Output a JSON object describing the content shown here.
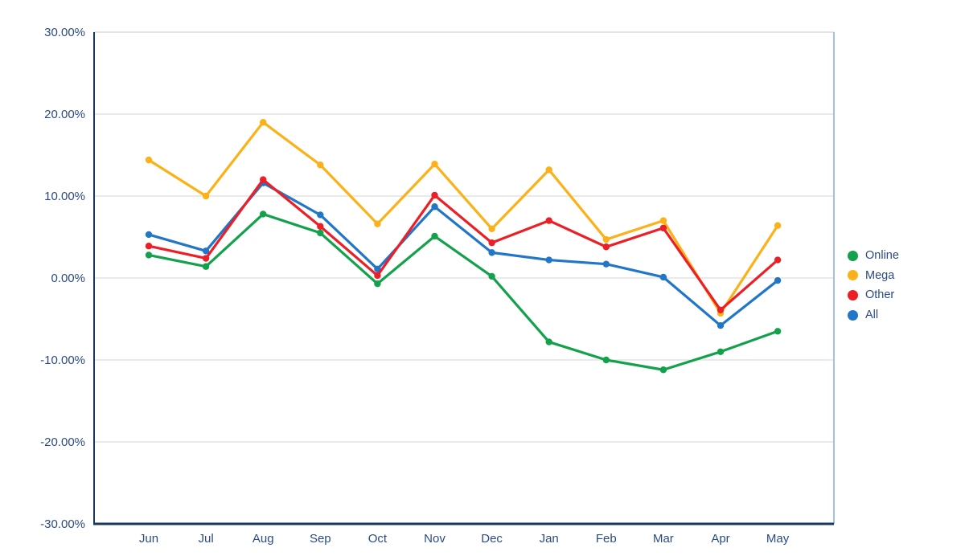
{
  "chart_data": {
    "type": "line",
    "title": "",
    "xlabel": "",
    "ylabel": "",
    "unit": "percent",
    "categories": [
      "Jun",
      "Jul",
      "Aug",
      "Sep",
      "Oct",
      "Nov",
      "Dec",
      "Jan",
      "Feb",
      "Mar",
      "Apr",
      "May"
    ],
    "series": [
      {
        "name": "Online",
        "color": "#13A14B",
        "values": [
          2.8,
          1.4,
          7.8,
          5.5,
          -0.7,
          5.1,
          0.2,
          -7.8,
          -10.0,
          -11.2,
          -9.0,
          -6.5
        ]
      },
      {
        "name": "Mega",
        "color": "#FBB117",
        "values": [
          14.4,
          10.0,
          19.0,
          13.8,
          6.6,
          13.9,
          6.0,
          13.2,
          4.7,
          7.0,
          -4.3,
          6.4
        ]
      },
      {
        "name": "Other",
        "color": "#EC1E26",
        "values": [
          3.9,
          2.4,
          12.0,
          6.3,
          0.3,
          10.1,
          4.3,
          7.0,
          3.8,
          6.1,
          -3.9,
          2.2
        ]
      },
      {
        "name": "All",
        "color": "#2176C7",
        "values": [
          5.3,
          3.3,
          11.6,
          7.7,
          1.1,
          8.7,
          3.1,
          2.2,
          1.7,
          0.1,
          -5.8,
          -0.3
        ]
      }
    ],
    "ylim": [
      -30,
      30
    ],
    "yticks": [
      {
        "value": 30,
        "label": "30.00%"
      },
      {
        "value": 20,
        "label": "20.00%"
      },
      {
        "value": 10,
        "label": "10.00%"
      },
      {
        "value": 0,
        "label": "0.00%"
      },
      {
        "value": -10,
        "label": "-10.00%"
      },
      {
        "value": -20,
        "label": "-20.00%"
      },
      {
        "value": -30,
        "label": "-30.00%"
      }
    ],
    "grid": true,
    "legend_position": "right"
  },
  "legend": {
    "items": [
      {
        "label": "Online",
        "color": "#13A14B"
      },
      {
        "label": "Mega",
        "color": "#FBB117"
      },
      {
        "label": "Other",
        "color": "#EC1E26"
      },
      {
        "label": "All",
        "color": "#2176C7"
      }
    ]
  },
  "colors": {
    "axis_text": "#2B4A86",
    "grid": "#D6D6D6",
    "axis_line": "#17375E",
    "right_border": "#A3C2DE",
    "top_border": "#C9C9C9",
    "background": "#FFFFFF"
  }
}
